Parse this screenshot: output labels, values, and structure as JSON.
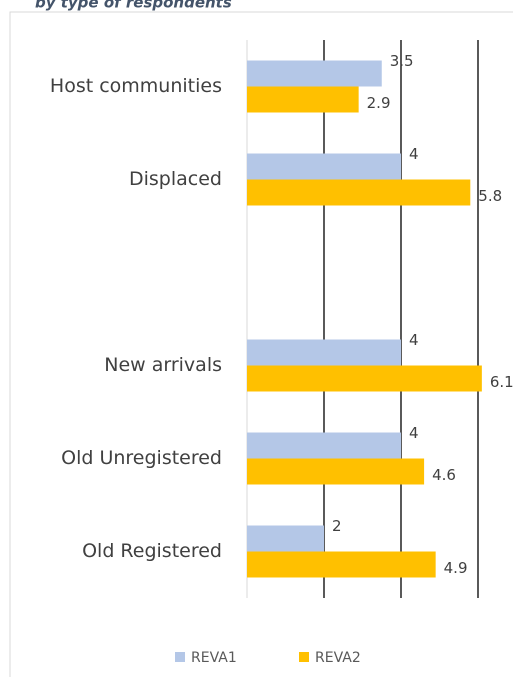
{
  "chart_data": {
    "type": "bar",
    "orientation": "horizontal",
    "subtitle": "by type of respondents",
    "categories": [
      "Host communities",
      "Displaced",
      null,
      "New arrivals",
      "Old Unregistered",
      "Old Registered"
    ],
    "series": [
      {
        "name": "REVA1",
        "color": "#b4c7e7",
        "values": [
          3.5,
          4,
          null,
          4,
          4,
          2
        ]
      },
      {
        "name": "REVA2",
        "color": "#ffc000",
        "values": [
          2.9,
          5.8,
          null,
          6.1,
          4.6,
          4.9
        ]
      }
    ],
    "xlim": [
      0,
      7
    ],
    "xticks": [
      2,
      4,
      6
    ],
    "grid": true,
    "legend": "bottom"
  }
}
